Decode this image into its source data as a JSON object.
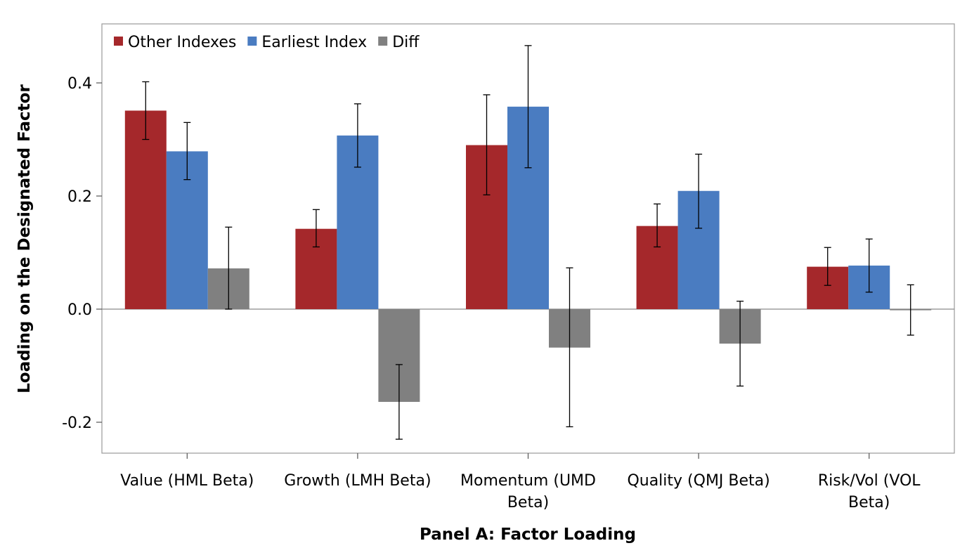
{
  "chart_data": {
    "type": "bar",
    "xlabel": "Panel A: Factor Loading",
    "ylabel": "Loading on the Designated Factor",
    "ylim": [
      -0.25,
      0.5
    ],
    "yticks": [
      -0.2,
      0.0,
      0.2,
      0.4
    ],
    "ytick_labels": [
      "-0.2",
      "0.0",
      "0.2",
      "0.4"
    ],
    "categories": [
      [
        "Value (HML Beta)"
      ],
      [
        "Growth (LMH Beta)"
      ],
      [
        "Momentum (UMD",
        "Beta)"
      ],
      [
        "Quality (QMJ Beta)"
      ],
      [
        "Risk/Vol (VOL",
        "Beta)"
      ]
    ],
    "legend_position": "top-left",
    "grid": false,
    "series": [
      {
        "name": "Other Indexes",
        "color": "#A5282B",
        "values": [
          0.351,
          0.142,
          0.29,
          0.147,
          0.075
        ],
        "err_low": [
          0.3,
          0.11,
          0.202,
          0.11,
          0.042
        ],
        "err_high": [
          0.402,
          0.176,
          0.379,
          0.186,
          0.109
        ]
      },
      {
        "name": "Earliest Index",
        "color": "#4A7CC1",
        "values": [
          0.279,
          0.307,
          0.358,
          0.209,
          0.077
        ],
        "err_low": [
          0.229,
          0.251,
          0.25,
          0.143,
          0.03
        ],
        "err_high": [
          0.33,
          0.363,
          0.466,
          0.274,
          0.124
        ]
      },
      {
        "name": "Diff",
        "color": "#808080",
        "values": [
          0.072,
          -0.164,
          -0.068,
          -0.061,
          -0.002
        ],
        "err_low": [
          0.0,
          -0.23,
          -0.208,
          -0.136,
          -0.046
        ],
        "err_high": [
          0.145,
          -0.098,
          0.073,
          0.014,
          0.043
        ]
      }
    ]
  }
}
